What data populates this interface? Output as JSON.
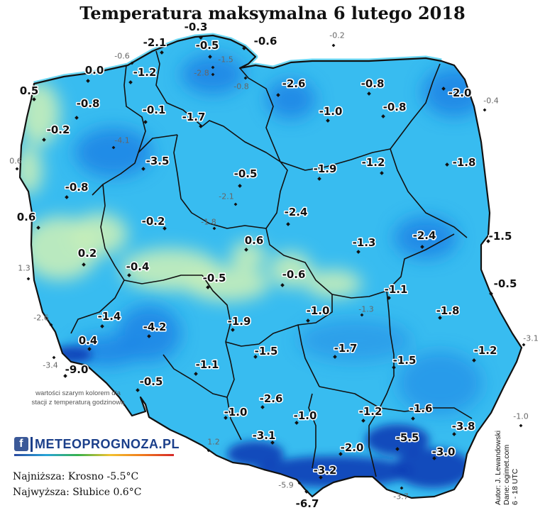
{
  "title": "Temperatura maksymalna 6 lutego 2018",
  "note": "wartości szarym kolorem dla stacji z temperaturą godzinową",
  "logo": {
    "icon": "facebook-icon",
    "text": "METEOPROGNOZA.PL"
  },
  "summary": {
    "lowest": "Najniższa: Krosno -5.5°C",
    "highest": "Najwyższa: Słubice 0.6°C"
  },
  "credit": {
    "author": "Autor: J. Lewandowski",
    "data": "Dane: ogimet.com",
    "period": "6 - 18 UTC"
  },
  "colors": {
    "background": "#ffffff",
    "land_base": "#38bcf0",
    "warm_area": "#c8eeb9",
    "cool_area": "#1f86e6",
    "cold_area": "#0b3fb6",
    "sea_edge": "#6fd9f5",
    "border": "#111111",
    "label_main": "#111111",
    "label_gray": "#666666"
  },
  "stations": [
    {
      "value": "-0.3",
      "kind": "main"
    },
    {
      "value": "-0.2",
      "kind": "gray"
    },
    {
      "value": "-2.1",
      "kind": "main"
    },
    {
      "value": "-0.5",
      "kind": "main"
    },
    {
      "value": "-0.6",
      "kind": "main"
    },
    {
      "value": "-0.6",
      "kind": "gray"
    },
    {
      "value": "-1.5",
      "kind": "gray"
    },
    {
      "value": "0.0",
      "kind": "main"
    },
    {
      "value": "-1.2",
      "kind": "main"
    },
    {
      "value": "-2.8",
      "kind": "gray"
    },
    {
      "value": "-0.8",
      "kind": "gray"
    },
    {
      "value": "-2.6",
      "kind": "main"
    },
    {
      "value": "-0.8",
      "kind": "main"
    },
    {
      "value": "0.5",
      "kind": "main"
    },
    {
      "value": "-2.0",
      "kind": "main"
    },
    {
      "value": "-0.4",
      "kind": "gray"
    },
    {
      "value": "-0.8",
      "kind": "main"
    },
    {
      "value": "-0.1",
      "kind": "main"
    },
    {
      "value": "-1.7",
      "kind": "main"
    },
    {
      "value": "-1.0",
      "kind": "main"
    },
    {
      "value": "-0.8",
      "kind": "main"
    },
    {
      "value": "-0.2",
      "kind": "main"
    },
    {
      "value": "-4.1",
      "kind": "gray"
    },
    {
      "value": "-3.5",
      "kind": "main"
    },
    {
      "value": "-0.5",
      "kind": "main"
    },
    {
      "value": "-1.9",
      "kind": "main"
    },
    {
      "value": "-1.2",
      "kind": "main"
    },
    {
      "value": "-1.8",
      "kind": "main"
    },
    {
      "value": "0.6",
      "kind": "gray"
    },
    {
      "value": "-0.8",
      "kind": "main"
    },
    {
      "value": "-2.1",
      "kind": "gray"
    },
    {
      "value": "0.6",
      "kind": "main"
    },
    {
      "value": "-0.2",
      "kind": "main"
    },
    {
      "value": "-1.8",
      "kind": "gray"
    },
    {
      "value": "-2.4",
      "kind": "main"
    },
    {
      "value": "0.6",
      "kind": "main"
    },
    {
      "value": "-1.3",
      "kind": "main"
    },
    {
      "value": "-2.4",
      "kind": "main"
    },
    {
      "value": "-1.5",
      "kind": "main"
    },
    {
      "value": "0.2",
      "kind": "main"
    },
    {
      "value": "1.3",
      "kind": "gray"
    },
    {
      "value": "-0.4",
      "kind": "main"
    },
    {
      "value": "-0.5",
      "kind": "main"
    },
    {
      "value": "-0.6",
      "kind": "main"
    },
    {
      "value": "-0.5",
      "kind": "main"
    },
    {
      "value": "-1.1",
      "kind": "main"
    },
    {
      "value": "-2.6",
      "kind": "gray"
    },
    {
      "value": "-1.4",
      "kind": "main"
    },
    {
      "value": "-1.9",
      "kind": "main"
    },
    {
      "value": "-1.0",
      "kind": "main"
    },
    {
      "value": "-1.3",
      "kind": "gray"
    },
    {
      "value": "-1.8",
      "kind": "main"
    },
    {
      "value": "-4.2",
      "kind": "main"
    },
    {
      "value": "0.4",
      "kind": "main"
    },
    {
      "value": "-3.1",
      "kind": "gray"
    },
    {
      "value": "-3.4",
      "kind": "gray"
    },
    {
      "value": "-9.0",
      "kind": "main"
    },
    {
      "value": "-1.5",
      "kind": "main"
    },
    {
      "value": "-1.7",
      "kind": "main"
    },
    {
      "value": "-1.5",
      "kind": "main"
    },
    {
      "value": "-1.2",
      "kind": "main"
    },
    {
      "value": "-1.1",
      "kind": "main"
    },
    {
      "value": "-0.5",
      "kind": "main"
    },
    {
      "value": "-2.6",
      "kind": "main"
    },
    {
      "value": "-1.0",
      "kind": "main"
    },
    {
      "value": "-1.0",
      "kind": "main"
    },
    {
      "value": "-1.2",
      "kind": "main"
    },
    {
      "value": "-1.6",
      "kind": "main"
    },
    {
      "value": "-1.0",
      "kind": "gray"
    },
    {
      "value": "1.2",
      "kind": "gray"
    },
    {
      "value": "-3.1",
      "kind": "main"
    },
    {
      "value": "-2.0",
      "kind": "main"
    },
    {
      "value": "-5.5",
      "kind": "main"
    },
    {
      "value": "-3.8",
      "kind": "main"
    },
    {
      "value": "-3.0",
      "kind": "main"
    },
    {
      "value": "-3.2",
      "kind": "main"
    },
    {
      "value": "-5.9",
      "kind": "gray"
    },
    {
      "value": "-6.7",
      "kind": "main"
    },
    {
      "value": "-3.7",
      "kind": "gray"
    }
  ]
}
